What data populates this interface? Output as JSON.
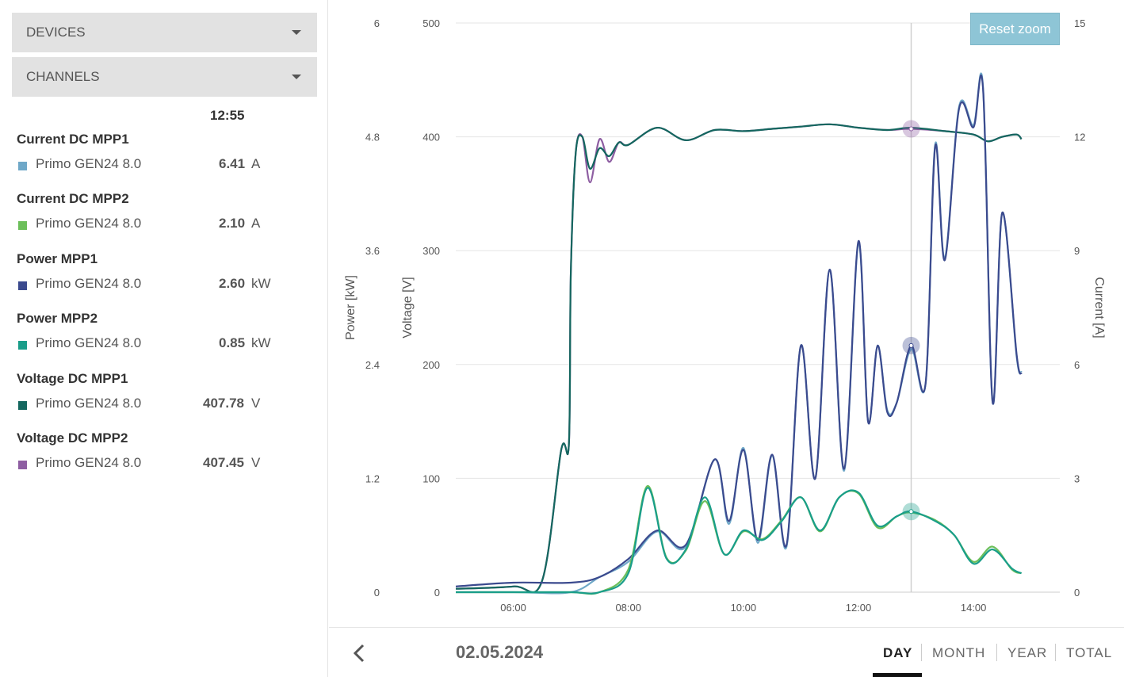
{
  "sidebar": {
    "devices_label": "DEVICES",
    "channels_label": "CHANNELS",
    "time_header": "12:55",
    "groups": [
      {
        "title": "Current DC MPP1",
        "device": "Primo GEN24 8.0",
        "value": "6.41",
        "unit": "A",
        "color": "#6fa8c8"
      },
      {
        "title": "Current DC MPP2",
        "device": "Primo GEN24 8.0",
        "value": "2.10",
        "unit": "A",
        "color": "#6cbf5a"
      },
      {
        "title": "Power MPP1",
        "device": "Primo GEN24 8.0",
        "value": "2.60",
        "unit": "kW",
        "color": "#3b4a8e"
      },
      {
        "title": "Power MPP2",
        "device": "Primo GEN24 8.0",
        "value": "0.85",
        "unit": "kW",
        "color": "#1a9e8a"
      },
      {
        "title": "Voltage DC MPP1",
        "device": "Primo GEN24 8.0",
        "value": "407.78",
        "unit": "V",
        "color": "#14675f"
      },
      {
        "title": "Voltage DC MPP2",
        "device": "Primo GEN24 8.0",
        "value": "407.45",
        "unit": "V",
        "color": "#8e5ea2"
      }
    ]
  },
  "chart": {
    "reset_zoom_label": "Reset zoom",
    "power_axis_label": "Power [kW]",
    "voltage_axis_label": "Voltage [V]",
    "current_axis_label": "Current [A]",
    "power_ticks": [
      "0",
      "1.2",
      "2.4",
      "3.6",
      "4.8",
      "6"
    ],
    "voltage_ticks": [
      "0",
      "100",
      "200",
      "300",
      "400",
      "500"
    ],
    "current_ticks": [
      "0",
      "3",
      "6",
      "9",
      "12",
      "15"
    ],
    "x_ticks": [
      "06:00",
      "08:00",
      "10:00",
      "12:00",
      "14:00"
    ]
  },
  "chart_data": {
    "type": "line",
    "x_range": [
      "05:00",
      "15:30"
    ],
    "crosshair_time": "12:55",
    "axes": {
      "power": {
        "unit": "kW",
        "range": [
          0,
          6
        ]
      },
      "voltage": {
        "unit": "V",
        "range": [
          0,
          500
        ]
      },
      "current": {
        "unit": "A",
        "range": [
          0,
          15
        ]
      }
    },
    "series": [
      {
        "name": "Voltage DC MPP2",
        "axis": "voltage",
        "color": "#8e5ea2",
        "x": [
          "05:00",
          "06:00",
          "06:30",
          "06:50",
          "06:58",
          "07:00",
          "07:05",
          "07:12",
          "07:20",
          "07:30",
          "07:40",
          "07:50",
          "08:00",
          "08:30",
          "09:00",
          "09:30",
          "10:00",
          "10:30",
          "11:00",
          "11:30",
          "12:00",
          "12:30",
          "12:55",
          "13:30",
          "14:00",
          "14:15",
          "14:30",
          "14:45",
          "14:50"
        ],
        "y": [
          3,
          5,
          10,
          125,
          130,
          280,
          385,
          400,
          360,
          398,
          378,
          395,
          393,
          408,
          397,
          406,
          405,
          407,
          409,
          411,
          408,
          406,
          407,
          405,
          402,
          396,
          400,
          402,
          398
        ]
      },
      {
        "name": "Voltage DC MPP1",
        "axis": "voltage",
        "color": "#14675f",
        "x": [
          "05:00",
          "06:00",
          "06:30",
          "06:50",
          "06:58",
          "07:00",
          "07:05",
          "07:12",
          "07:20",
          "07:30",
          "07:40",
          "07:50",
          "08:00",
          "08:30",
          "09:00",
          "09:30",
          "10:00",
          "10:30",
          "11:00",
          "11:30",
          "12:00",
          "12:30",
          "12:55",
          "13:30",
          "14:00",
          "14:15",
          "14:30",
          "14:45",
          "14:50"
        ],
        "y": [
          3,
          5,
          10,
          125,
          130,
          280,
          385,
          400,
          372,
          390,
          383,
          395,
          393,
          408,
          397,
          406,
          405,
          407,
          409,
          411,
          408,
          406,
          408,
          405,
          402,
          396,
          400,
          402,
          398
        ]
      },
      {
        "name": "Current DC MPP1",
        "axis": "current",
        "color": "#6fa8c8",
        "x": [
          "05:00",
          "06:00",
          "07:00",
          "07:30",
          "08:00",
          "08:30",
          "09:00",
          "09:30",
          "09:45",
          "10:00",
          "10:15",
          "10:30",
          "10:45",
          "11:00",
          "11:15",
          "11:30",
          "11:45",
          "12:00",
          "12:10",
          "12:20",
          "12:30",
          "12:40",
          "12:55",
          "13:10",
          "13:20",
          "13:30",
          "13:45",
          "14:00",
          "14:10",
          "14:20",
          "14:30",
          "14:45",
          "14:50"
        ],
        "y": [
          0,
          0,
          0,
          0.4,
          0.8,
          1.6,
          1.2,
          3.5,
          1.8,
          3.8,
          1.3,
          3.6,
          1.2,
          6.5,
          3.0,
          8.5,
          3.2,
          9.2,
          4.5,
          6.5,
          4.8,
          5.0,
          6.41,
          5.5,
          11.8,
          8.8,
          12.8,
          12.3,
          13.3,
          5.0,
          10.0,
          6.2,
          5.8
        ]
      },
      {
        "name": "Power MPP1",
        "axis": "power",
        "color": "#3b4a8e",
        "x": [
          "05:00",
          "06:00",
          "07:00",
          "07:30",
          "08:00",
          "08:30",
          "09:00",
          "09:30",
          "09:45",
          "10:00",
          "10:15",
          "10:30",
          "10:45",
          "11:00",
          "11:15",
          "11:30",
          "11:45",
          "12:00",
          "12:10",
          "12:20",
          "12:30",
          "12:40",
          "12:55",
          "13:10",
          "13:20",
          "13:30",
          "13:45",
          "14:00",
          "14:10",
          "14:20",
          "14:30",
          "14:45",
          "14:50"
        ],
        "y": [
          0.06,
          0.1,
          0.1,
          0.16,
          0.35,
          0.65,
          0.5,
          1.4,
          0.75,
          1.5,
          0.55,
          1.45,
          0.5,
          2.6,
          1.2,
          3.4,
          1.3,
          3.7,
          1.8,
          2.6,
          1.9,
          2.0,
          2.6,
          2.2,
          4.7,
          3.5,
          5.1,
          4.9,
          5.3,
          2.0,
          4.0,
          2.5,
          2.3
        ]
      },
      {
        "name": "Current DC MPP2",
        "axis": "current",
        "color": "#6cbf5a",
        "x": [
          "05:00",
          "06:00",
          "07:00",
          "07:30",
          "08:00",
          "08:20",
          "08:40",
          "09:00",
          "09:20",
          "09:40",
          "10:00",
          "10:20",
          "10:40",
          "11:00",
          "11:20",
          "11:40",
          "12:00",
          "12:20",
          "12:40",
          "12:55",
          "13:20",
          "13:40",
          "14:00",
          "14:20",
          "14:40",
          "14:50"
        ],
        "y": [
          0,
          0,
          0,
          0,
          0.6,
          2.8,
          0.9,
          1.1,
          2.4,
          1.0,
          1.6,
          1.4,
          1.9,
          2.5,
          1.6,
          2.5,
          2.6,
          1.7,
          2.0,
          2.1,
          1.9,
          1.5,
          0.8,
          1.2,
          0.6,
          0.5
        ]
      },
      {
        "name": "Power MPP2",
        "axis": "power",
        "color": "#1a9e8a",
        "x": [
          "05:00",
          "06:00",
          "07:00",
          "07:30",
          "08:00",
          "08:20",
          "08:40",
          "09:00",
          "09:20",
          "09:40",
          "10:00",
          "10:20",
          "10:40",
          "11:00",
          "11:20",
          "11:40",
          "12:00",
          "12:20",
          "12:40",
          "12:55",
          "13:20",
          "13:40",
          "14:00",
          "14:20",
          "14:40",
          "14:50"
        ],
        "y": [
          0,
          0,
          0,
          0,
          0.2,
          1.1,
          0.35,
          0.45,
          1.0,
          0.4,
          0.65,
          0.55,
          0.75,
          1.0,
          0.65,
          1.0,
          1.05,
          0.7,
          0.8,
          0.85,
          0.75,
          0.6,
          0.3,
          0.45,
          0.25,
          0.2
        ]
      }
    ]
  },
  "bottom": {
    "date": "02.05.2024",
    "periods": [
      "DAY",
      "MONTH",
      "YEAR",
      "TOTAL"
    ],
    "active_period": "DAY"
  }
}
